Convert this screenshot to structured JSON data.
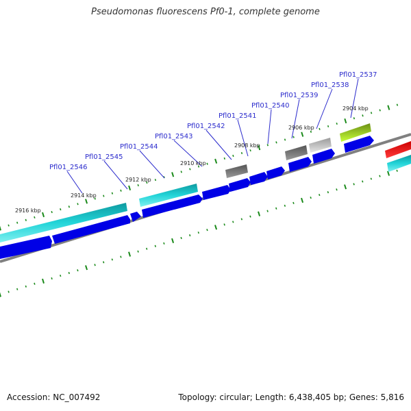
{
  "title": "Pseudomonas fluorescens Pf0-1, complete genome",
  "footer": {
    "accession": "Accession: NC_007492",
    "summary": "Topology: circular; Length: 6,438,405 bp; Genes: 5,816"
  },
  "colors": {
    "backbone": "#808080",
    "tick": "#1a8a1a",
    "cds_forward": "#0000e6",
    "feature_cyan": "#19c3c8",
    "feature_dark_grey": "#6e6e6e",
    "feature_light_grey": "#c4c4c4",
    "feature_olive": "#86b21a",
    "feature_red": "#ee0000",
    "label_text": "#2a2acc"
  },
  "ruler_labels": [
    {
      "text": "2904 kbp"
    },
    {
      "text": "2906 kbp"
    },
    {
      "text": "2908 kbp"
    },
    {
      "text": "2910 kbp"
    },
    {
      "text": "2912 kbp"
    },
    {
      "text": "2914 kbp"
    },
    {
      "text": "2916 kbp"
    }
  ],
  "gene_labels": [
    {
      "text": "Pfl01_2537"
    },
    {
      "text": "Pfl01_2538"
    },
    {
      "text": "Pfl01_2539"
    },
    {
      "text": "Pfl01_2540"
    },
    {
      "text": "Pfl01_2541"
    },
    {
      "text": "Pfl01_2542"
    },
    {
      "text": "Pfl01_2543"
    },
    {
      "text": "Pfl01_2544"
    },
    {
      "text": "Pfl01_2545"
    },
    {
      "text": "Pfl01_2546"
    }
  ]
}
